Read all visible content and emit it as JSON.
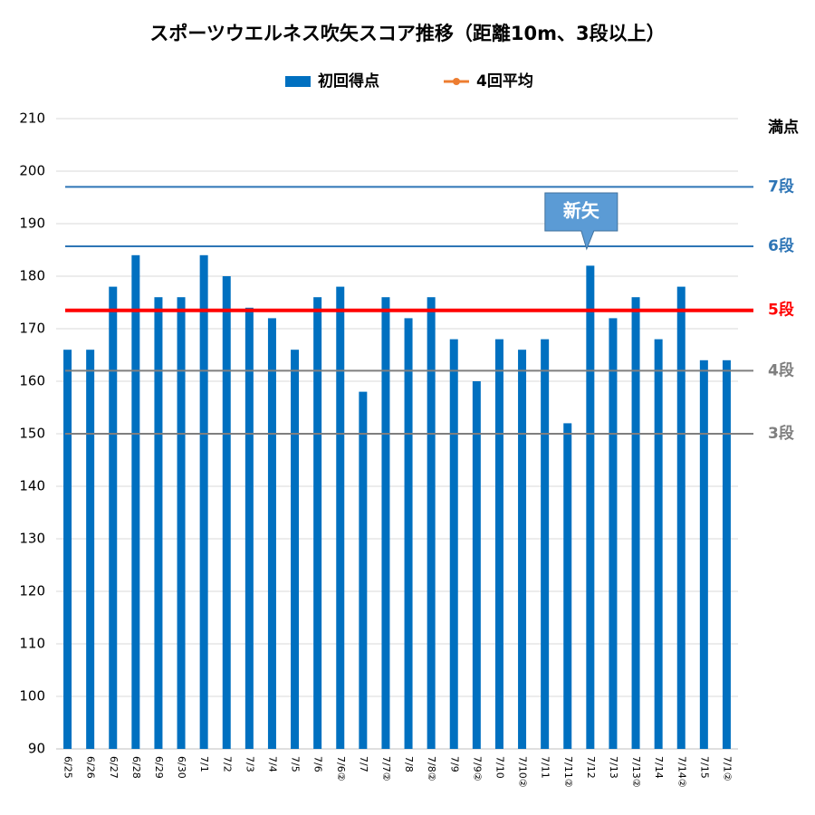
{
  "chart_data": {
    "type": "bar",
    "title": "スポーツウエルネス吹矢スコア推移（距離10m、3段以上）",
    "categories": [
      "6/25",
      "6/26",
      "6/27",
      "6/28",
      "6/29",
      "6/30",
      "7/1",
      "7/2",
      "7/3",
      "7/4",
      "7/5",
      "7/6",
      "7/6②",
      "7/7",
      "7/7②",
      "7/8",
      "7/8②",
      "7/9",
      "7/9②",
      "7/10",
      "7/10②",
      "7/11",
      "7/11②",
      "7/12",
      "7/13",
      "7/13②",
      "7/14",
      "7/14②",
      "7/15",
      "7/1②"
    ],
    "series": [
      {
        "name": "初回得点",
        "color": "#0070c0",
        "values": [
          166,
          166,
          178,
          184,
          176,
          176,
          184,
          180,
          174,
          172,
          166,
          176,
          178,
          158,
          176,
          172,
          176,
          168,
          160,
          168,
          166,
          168,
          152,
          182,
          172,
          176,
          168,
          178,
          164,
          164
        ]
      },
      {
        "name": "4回平均",
        "color": "#ed7d31",
        "values": [
          null,
          null,
          null,
          null,
          null,
          null,
          null,
          null,
          null,
          null,
          null,
          null,
          null,
          null,
          null,
          null,
          null,
          null,
          null,
          null,
          null,
          null,
          null,
          null,
          null,
          null,
          null,
          null,
          null,
          null
        ]
      }
    ],
    "ylim": [
      90,
      210
    ],
    "yticks": [
      90,
      100,
      110,
      120,
      130,
      140,
      150,
      160,
      170,
      180,
      190,
      200,
      210
    ],
    "grid": true,
    "reference_lines": [
      {
        "label": "満点",
        "value": 210,
        "line": false,
        "color": "#000000"
      },
      {
        "label": "7段",
        "value": 197,
        "line": true,
        "color": "#2e75b6"
      },
      {
        "label": "6段",
        "value": 185.7,
        "line": true,
        "color": "#2e75b6"
      },
      {
        "label": "5段",
        "value": 173.5,
        "line": true,
        "color": "#ff0000"
      },
      {
        "label": "4段",
        "value": 162,
        "line": true,
        "color": "#7f7f7f"
      },
      {
        "label": "3段",
        "value": 150,
        "line": true,
        "color": "#7f7f7f"
      }
    ],
    "annotation": {
      "text": "新矢",
      "category_index": 23
    }
  }
}
